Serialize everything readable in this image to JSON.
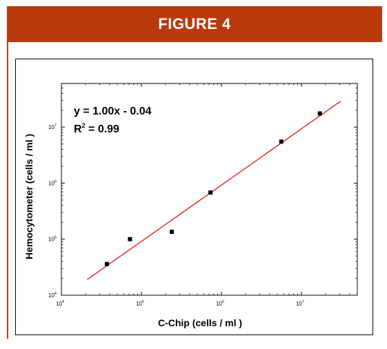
{
  "figure": {
    "title": "FIGURE 4",
    "accent_color": "#b93a0c"
  },
  "chart_data": {
    "type": "scatter",
    "xscale": "log",
    "yscale": "log",
    "xlabel": "C-Chip (cells / ml )",
    "ylabel": "Hemocytometer (cells / ml )",
    "xlim": [
      10000,
      50000000
    ],
    "ylim": [
      10000,
      60000000
    ],
    "xticks": [
      10000,
      100000,
      1000000,
      10000000
    ],
    "yticks": [
      10000,
      100000,
      1000000,
      10000000
    ],
    "tick_base": "10",
    "xtick_exponents": [
      "4",
      "5",
      "6",
      "7"
    ],
    "ytick_exponents": [
      "4",
      "5",
      "6",
      "7"
    ],
    "points": [
      {
        "x": 37000,
        "y": 36000
      },
      {
        "x": 72000,
        "y": 100000
      },
      {
        "x": 240000,
        "y": 135000
      },
      {
        "x": 730000,
        "y": 680000
      },
      {
        "x": 5600000,
        "y": 5500000
      },
      {
        "x": 17000000,
        "y": 17500000
      }
    ],
    "fit_line": {
      "color": "#e8201c",
      "x_range": [
        21000,
        31000000
      ],
      "y_range": [
        19000,
        29000000
      ]
    },
    "annotation": {
      "equation": "y = 1.00x - 0.04",
      "r2_prefix": "R",
      "r2_exponent": "2",
      "r2_suffix": " = 0.99"
    },
    "grid": false,
    "legend": "none"
  }
}
